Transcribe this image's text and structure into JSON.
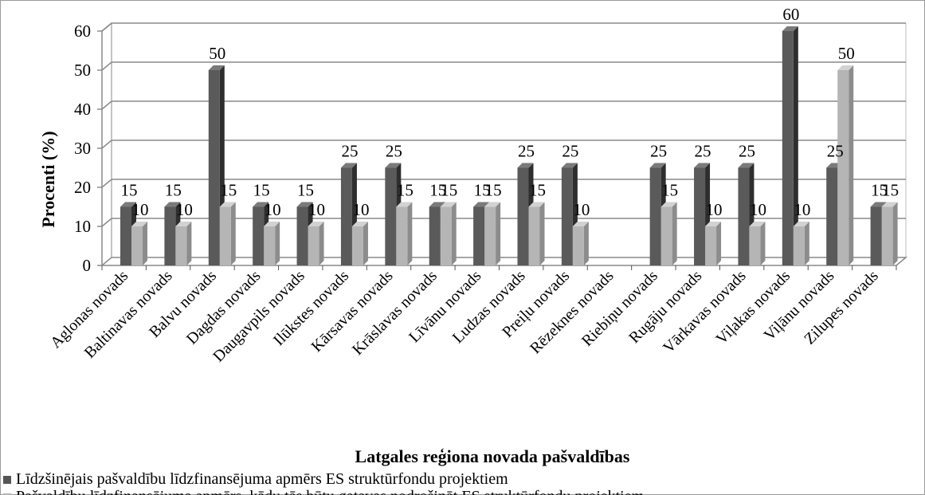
{
  "chart_data": {
    "type": "bar",
    "xlabel": "Latgales reģiona novada pašvaldības",
    "ylabel": "Procenti (%)",
    "ylim": [
      0,
      60
    ],
    "y_ticks": [
      0,
      10,
      20,
      30,
      40,
      50,
      60
    ],
    "grid": true,
    "legend_position": "bottom",
    "categories": [
      "Aglonas novads",
      "Baltinavas novads",
      "Balvu novads",
      "Dagdas novads",
      "Daugavpils novads",
      "Ilūkstes novads",
      "Kārsavas novads",
      "Krāslavas novads",
      "Līvānu novads",
      "Ludzas novads",
      "Preiļu novads",
      "Rēzeknes novads",
      "Riebiņu novads",
      "Rugāju novads",
      "Vārkavas novads",
      "Viļakas novads",
      "Viļānu novads",
      "Zilupes novads"
    ],
    "series": [
      {
        "name": "Līdzšinējais pašvaldību līdzfinansējuma apmērs ES struktūrfondu projektiem",
        "color": "#5a5a5a",
        "side_color": "#2e2e2e",
        "top_color": "#7a7a7a",
        "values": [
          15,
          15,
          50,
          15,
          15,
          25,
          25,
          15,
          15,
          25,
          25,
          null,
          25,
          25,
          25,
          60,
          25,
          15
        ]
      },
      {
        "name": "Pašvaldību līdzfinansējuma apmērs, kādu tās būtu gatavas nodrošināt ES struktūrfondu projektiem",
        "color": "#b5b5b5",
        "side_color": "#8c8c8c",
        "top_color": "#d2d2d2",
        "values": [
          10,
          10,
          15,
          10,
          10,
          10,
          15,
          15,
          15,
          15,
          10,
          null,
          15,
          10,
          10,
          10,
          50,
          15
        ]
      }
    ],
    "data_labels": [
      [
        "15",
        "10"
      ],
      [
        "15",
        "10"
      ],
      [
        "50",
        "15"
      ],
      [
        "15",
        "10"
      ],
      [
        "15",
        "10"
      ],
      [
        "25",
        "10"
      ],
      [
        "25",
        "15"
      ],
      [
        "15",
        "15"
      ],
      [
        "15",
        "15"
      ],
      [
        "25",
        "15"
      ],
      [
        "25",
        "10"
      ],
      [
        "",
        ""
      ],
      [
        "25",
        "15"
      ],
      [
        "25",
        "10"
      ],
      [
        "25",
        "10"
      ],
      [
        "60",
        "10"
      ],
      [
        "25",
        "50"
      ],
      [
        "15",
        "15"
      ]
    ]
  }
}
